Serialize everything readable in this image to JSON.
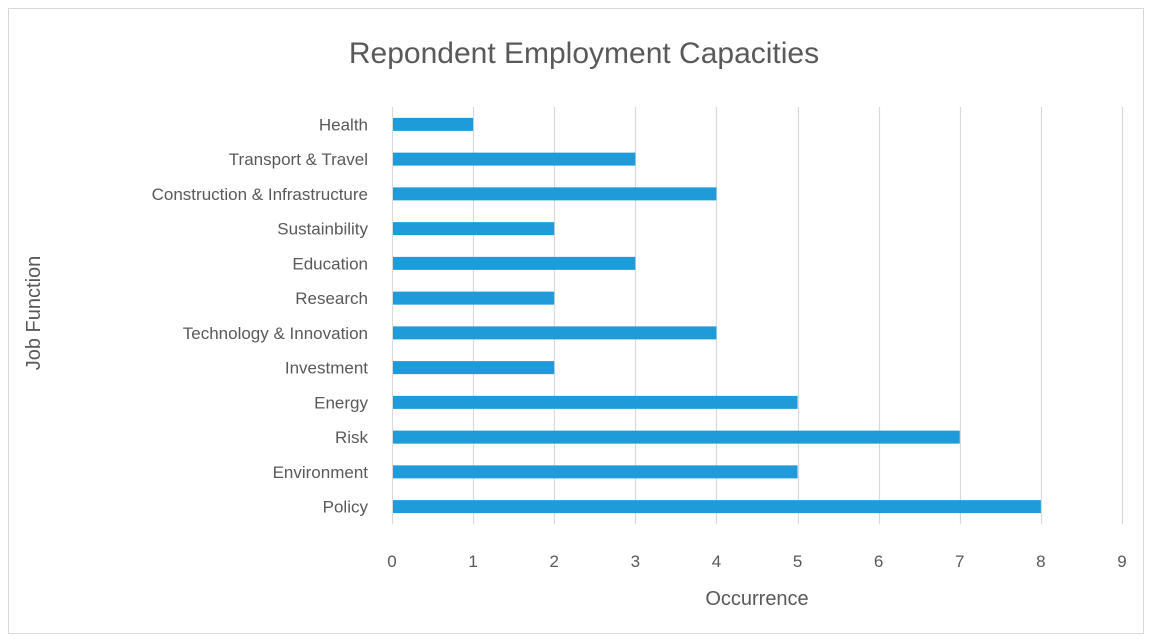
{
  "chart_data": {
    "type": "bar",
    "orientation": "horizontal",
    "title": "Repondent Employment Capacities",
    "xlabel": "Occurrence",
    "ylabel": "Job Function",
    "categories": [
      "Policy",
      "Environment",
      "Risk",
      "Energy",
      "Investment",
      "Technology & Innovation",
      "Research",
      "Education",
      "Sustainbility",
      "Construction & Infrastructure",
      "Transport & Travel",
      "Health"
    ],
    "values": [
      8,
      5,
      7,
      5,
      2,
      4,
      2,
      3,
      2,
      4,
      3,
      1
    ],
    "xlim": [
      0,
      9
    ],
    "xticks": [
      0,
      1,
      2,
      3,
      4,
      5,
      6,
      7,
      8,
      9
    ],
    "grid": "vertical",
    "legend": "none",
    "bar_color": "#1f9bd9",
    "grid_color": "#d9d9d9",
    "text_color": "#595959"
  }
}
